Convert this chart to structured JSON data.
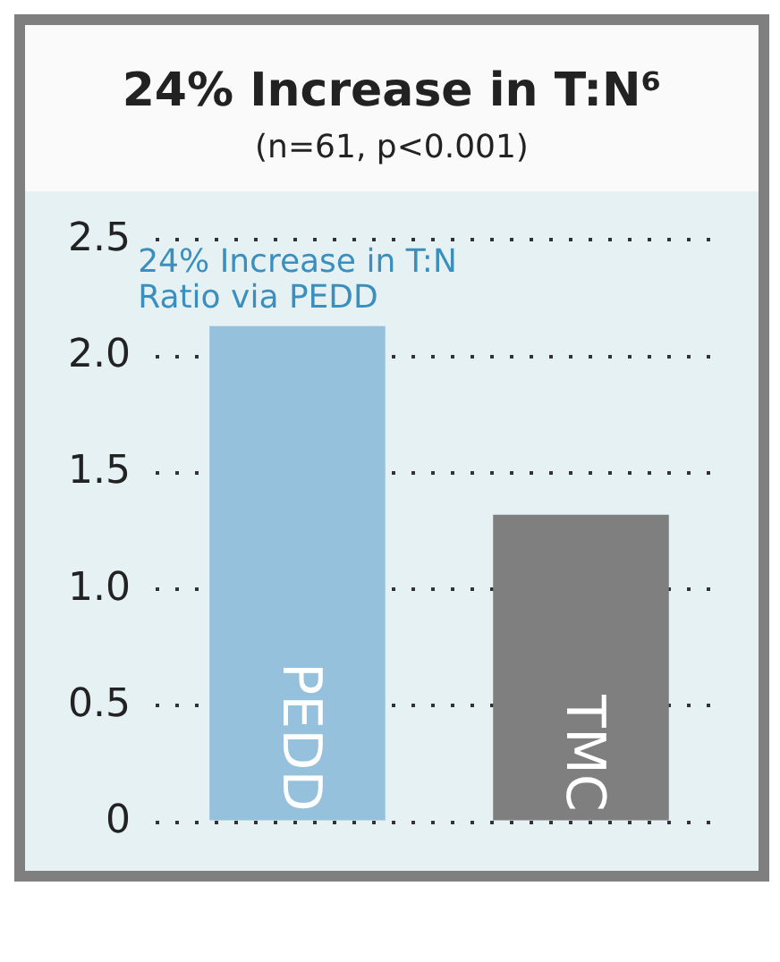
{
  "chart_data": {
    "type": "bar",
    "title": "24% Increase in T:N⁶",
    "subtitle": "(n=61, p<0.001)",
    "categories": [
      "PEDD",
      "TMC"
    ],
    "values": [
      2.13,
      1.32
    ],
    "colors": [
      "#96c1dc",
      "#7f7f7f"
    ],
    "ylim": [
      0,
      2.5
    ],
    "yticks": [
      0,
      0.5,
      {
        "value": 1,
        "label": "1.0"
      },
      1.5,
      {
        "value": 2,
        "label": "2.0"
      },
      2.5
    ],
    "annotations": [
      {
        "text": "24% Increase in T:N Ratio via PEDD",
        "x": "PEDD",
        "y": 2.13
      }
    ],
    "grid": "y",
    "legend": false
  }
}
